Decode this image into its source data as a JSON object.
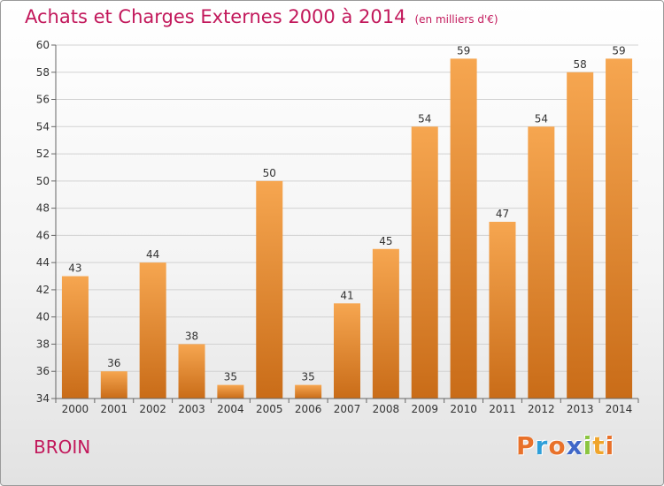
{
  "header": {
    "title": "Achats et Charges Externes 2000 à 2014",
    "unit": "(en milliers d'€)"
  },
  "footer": {
    "place": "BROIN",
    "brand_letters": [
      "P",
      "r",
      "o",
      "x",
      "i",
      "t",
      "i"
    ],
    "brand_colors": [
      "#e8712a",
      "#2f9fd9",
      "#e8712a",
      "#3f67c8",
      "#8bc540",
      "#f0a52b",
      "#e8712a"
    ]
  },
  "colors": {
    "bar_light": "#f6a650",
    "bar_dark": "#c96c18",
    "axis": "#666666",
    "grid": "#d2d2d2",
    "text": "#333333",
    "accent": "#c2185b"
  },
  "chart_data": {
    "type": "bar",
    "categories": [
      "2000",
      "2001",
      "2002",
      "2003",
      "2004",
      "2005",
      "2006",
      "2007",
      "2008",
      "2009",
      "2010",
      "2011",
      "2012",
      "2013",
      "2014"
    ],
    "values": [
      43,
      36,
      44,
      38,
      35,
      50,
      35,
      41,
      45,
      54,
      59,
      47,
      54,
      58,
      59
    ],
    "title": "Achats et Charges Externes 2000 à 2014",
    "ylim": [
      34,
      60
    ],
    "yticks": [
      34,
      36,
      38,
      40,
      42,
      44,
      46,
      48,
      50,
      52,
      54,
      56,
      58,
      60
    ],
    "grid": true,
    "legend": "none"
  }
}
